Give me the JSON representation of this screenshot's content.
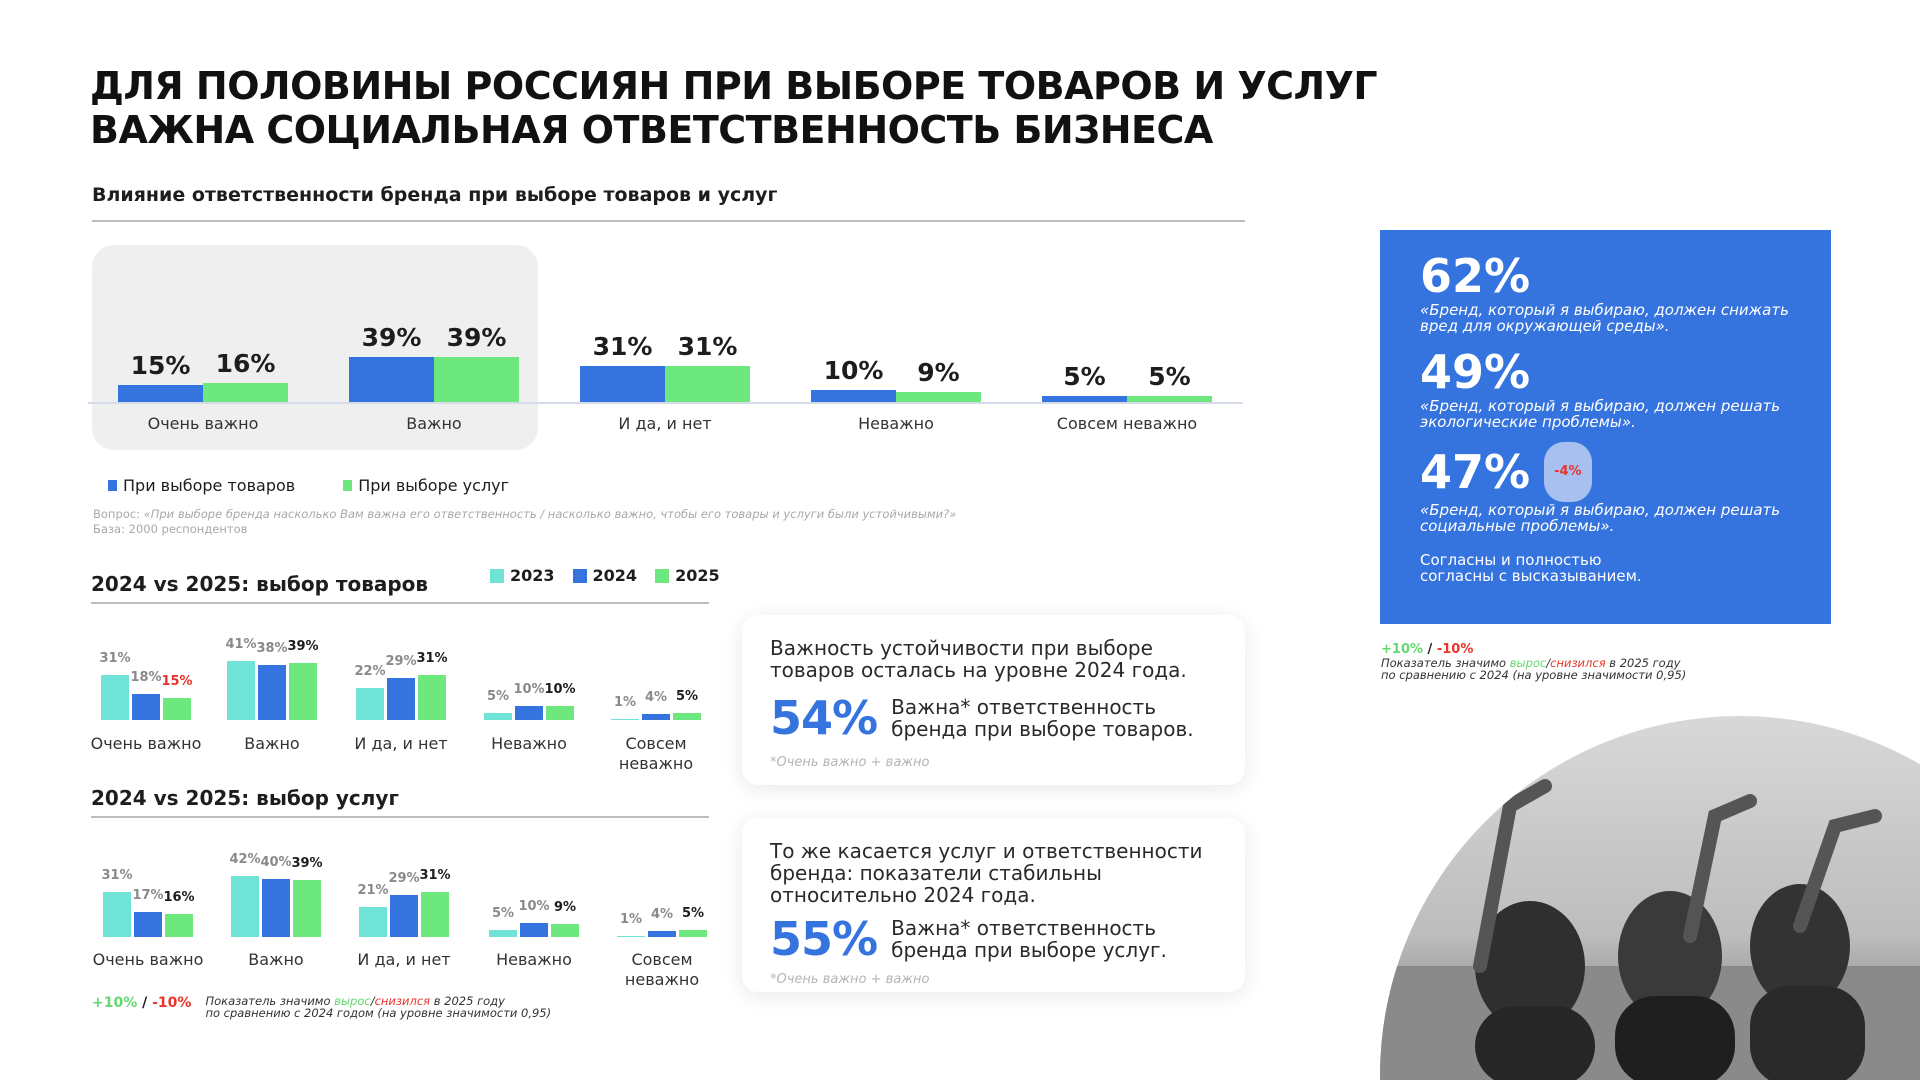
{
  "title_lines": [
    "ДЛЯ ПОЛОВИНЫ РОССИЯН ПРИ ВЫБОРЕ ТОВАРОВ И УСЛУГ",
    "ВАЖНА СОЦИАЛЬНАЯ ОТВЕТСТВЕННОСТЬ БИЗНЕСА"
  ],
  "question_prefix": "Вопрос: ",
  "question": "«При выборе бренда насколько Вам важна его ответственность / насколько важно, чтобы его товары и услуги были устойчивыми?»",
  "base": "База: 2000 респондентов",
  "colors": {
    "blue": "#3573de",
    "green": "#6de87e",
    "teal": "#6fe3d6",
    "red": "#e8342b"
  },
  "chart_data": [
    {
      "type": "bar",
      "title": "Влияние ответственности бренда при выборе товаров и услуг",
      "categories": [
        "Очень важно",
        "Важно",
        "И да, и нет",
        "Неважно",
        "Совсем неважно"
      ],
      "series": [
        {
          "name": "При выборе товаров",
          "values": [
            15,
            39,
            31,
            10,
            5
          ]
        },
        {
          "name": "При выборе услуг",
          "values": [
            16,
            39,
            31,
            9,
            5
          ]
        }
      ],
      "ylim": [
        0,
        45
      ],
      "legend": "bottom-left",
      "highlight_category": "Очень важно"
    },
    {
      "type": "bar",
      "title": "2024 vs 2025: выбор товаров",
      "categories": [
        "Очень важно",
        "Важно",
        "И да, и нет",
        "Неважно",
        "Совсем\nневажно"
      ],
      "series": [
        {
          "name": "2023",
          "values": [
            31,
            41,
            22,
            5,
            1
          ]
        },
        {
          "name": "2024",
          "values": [
            18,
            38,
            29,
            10,
            4
          ]
        },
        {
          "name": "2025",
          "values": [
            15,
            39,
            31,
            10,
            5
          ],
          "significant": [
            "down",
            null,
            null,
            null,
            null
          ]
        }
      ],
      "ylim": [
        0,
        45
      ],
      "legend": "top-right"
    },
    {
      "type": "bar",
      "title": "2024 vs 2025: выбор услуг",
      "categories": [
        "Очень важно",
        "Важно",
        "И да, и нет",
        "Неважно",
        "Совсем\nневажно"
      ],
      "series": [
        {
          "name": "2023",
          "values": [
            31,
            42,
            21,
            5,
            1
          ]
        },
        {
          "name": "2024",
          "values": [
            17,
            40,
            29,
            10,
            4
          ]
        },
        {
          "name": "2025",
          "values": [
            16,
            39,
            31,
            9,
            5
          ]
        }
      ],
      "ylim": [
        0,
        45
      ]
    }
  ],
  "sig_legend": {
    "up": "+10%",
    "sep": " / ",
    "down": "-10%",
    "line1_a": "Показатель значимо ",
    "grew": "вырос",
    "slash": "/",
    "fell": "снизился",
    "line1_b": " в 2025 году",
    "line2": "по сравнению с 2024 годом (на уровне значимости 0,95)",
    "line2_right": "по сравнению с 2024 (на уровне значимости 0,95)"
  },
  "cards": [
    {
      "text": "Важность устойчивости при выборе товаров осталась на уровне 2024 года.",
      "value": "54%",
      "desc": "Важна* ответственность бренда при выборе товаров.",
      "note": "*Очень важно + важно"
    },
    {
      "text": "То же касается услуг и ответственности бренда: показатели стабильны относительно 2024 года.",
      "value": "55%",
      "desc": "Важна* ответственность бренда при выборе услуг.",
      "note": "*Очень важно + важно"
    }
  ],
  "stats": [
    {
      "value": "62%",
      "quote": "«Бренд, который я выбираю, должен снижать вред для окружающей среды»."
    },
    {
      "value": "49%",
      "quote": "«Бренд, который я выбираю, должен решать экологические проблемы»."
    },
    {
      "value": "47%",
      "badge": "-4%",
      "quote": "«Бренд, который я выбираю, должен решать социальные проблемы»."
    }
  ],
  "stats_note": "Согласны и полностью согласны с высказыванием."
}
